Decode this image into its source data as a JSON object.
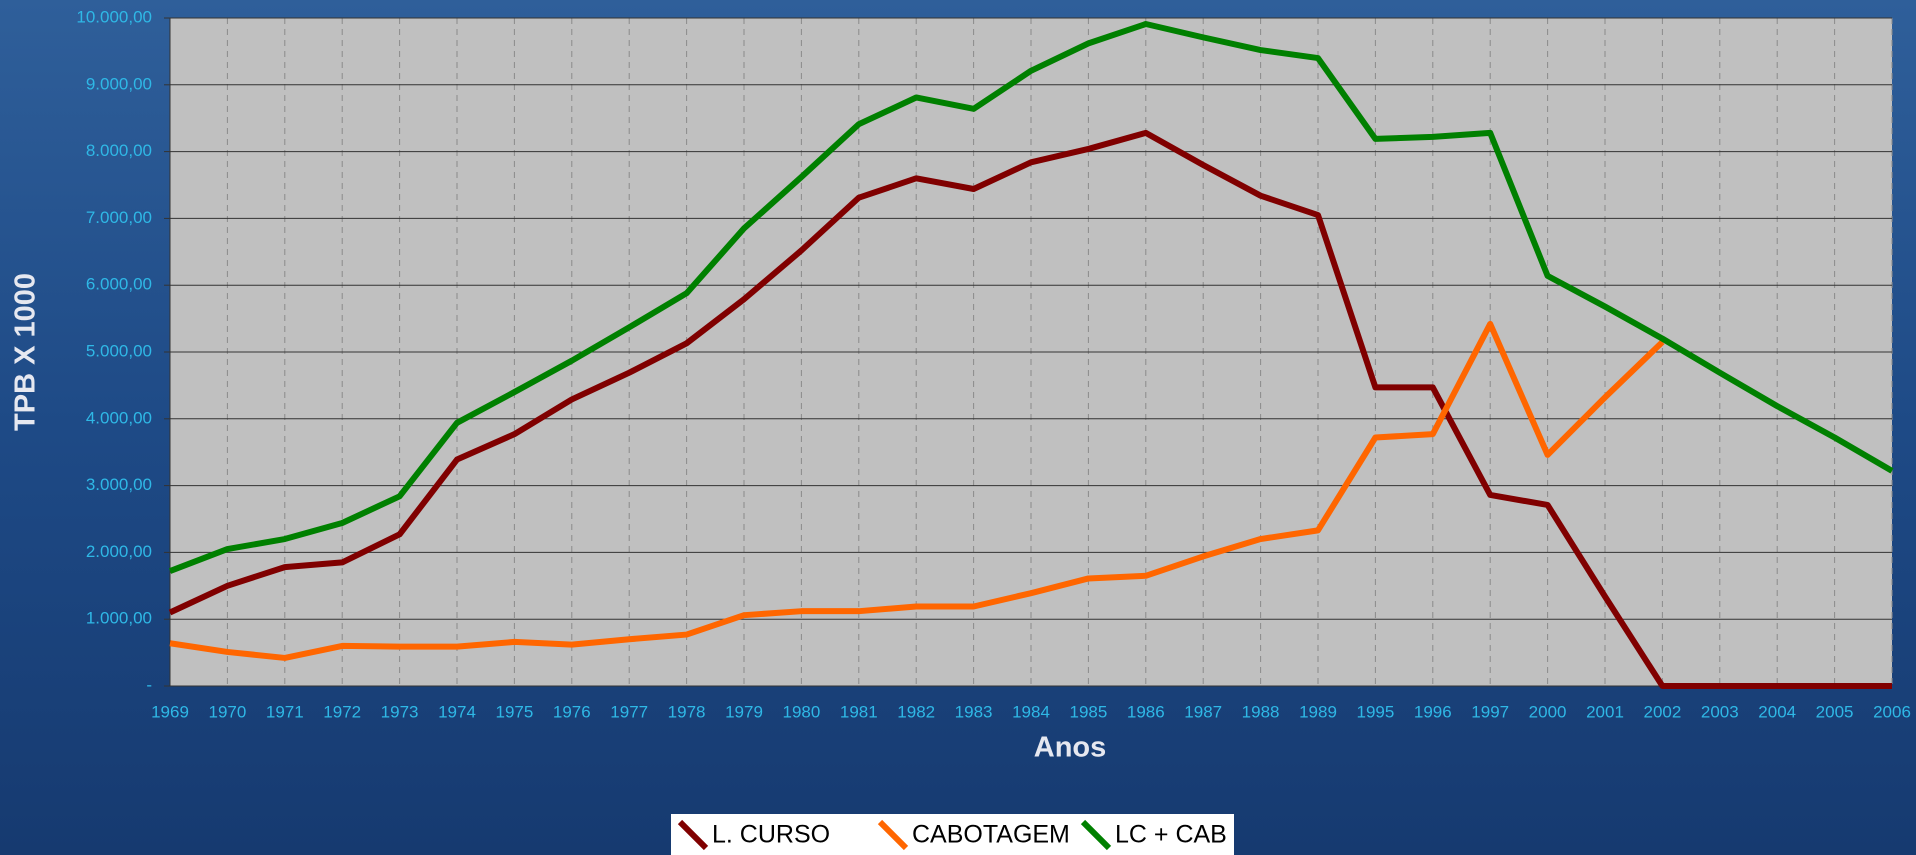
{
  "chart_data": {
    "type": "line",
    "x_label": "Anos",
    "y_label": "TPB X 1000",
    "categories": [
      "1969",
      "1970",
      "1971",
      "1972",
      "1973",
      "1974",
      "1975",
      "1976",
      "1977",
      "1978",
      "1979",
      "1980",
      "1981",
      "1982",
      "1983",
      "1984",
      "1985",
      "1986",
      "1987",
      "1988",
      "1989",
      "1995",
      "1996",
      "1997",
      "2000",
      "2001",
      "2002",
      "2003",
      "2004",
      "2005",
      "2006"
    ],
    "series": [
      {
        "name": "L. CURSO",
        "color": "#800000",
        "values": [
          1100,
          1500,
          1780,
          1850,
          2270,
          3390,
          3770,
          4290,
          4690,
          5130,
          5790,
          6520,
          7310,
          7600,
          7440,
          7840,
          8040,
          8280,
          7800,
          7340,
          7050,
          4470,
          4470,
          2860,
          2710,
          1340,
          0,
          0,
          0,
          0,
          0
        ]
      },
      {
        "name": "CABOTAGEM",
        "color": "#ff6600",
        "values": [
          640,
          510,
          420,
          600,
          590,
          590,
          660,
          620,
          700,
          770,
          1060,
          1120,
          1120,
          1190,
          1190,
          1390,
          1610,
          1650,
          1940,
          2200,
          2330,
          3720,
          3770,
          5420,
          3460,
          4320,
          5150,
          null,
          null,
          null,
          null
        ]
      },
      {
        "name": "LC + CAB",
        "color": "#008000",
        "values": [
          1720,
          2050,
          2200,
          2440,
          2840,
          3940,
          4400,
          4870,
          5370,
          5880,
          6850,
          7620,
          8410,
          8810,
          8640,
          9210,
          9620,
          9910,
          9710,
          9520,
          9400,
          8190,
          8220,
          8280,
          6140,
          5680,
          5200,
          4690,
          4190,
          3720,
          3220
        ]
      }
    ],
    "ylim": [
      0,
      10000
    ],
    "yticks": [
      {
        "value": 0,
        "label": "-"
      },
      {
        "value": 1000,
        "label": "1.000,00"
      },
      {
        "value": 2000,
        "label": "2.000,00"
      },
      {
        "value": 3000,
        "label": "3.000,00"
      },
      {
        "value": 4000,
        "label": "4.000,00"
      },
      {
        "value": 5000,
        "label": "5.000,00"
      },
      {
        "value": 6000,
        "label": "6.000,00"
      },
      {
        "value": 7000,
        "label": "7.000,00"
      },
      {
        "value": 8000,
        "label": "8.000,00"
      },
      {
        "value": 9000,
        "label": "9.000,00"
      },
      {
        "value": 10000,
        "label": "10.000,00"
      }
    ],
    "grid": true,
    "legend": "bottom"
  }
}
